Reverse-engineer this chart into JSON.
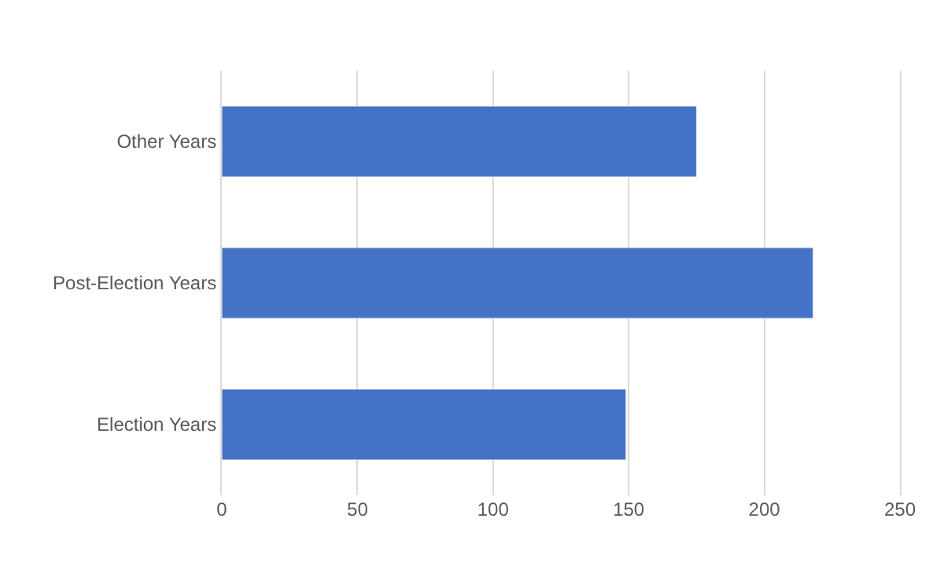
{
  "chart_data": {
    "type": "bar",
    "orientation": "horizontal",
    "categories": [
      "Other Years",
      "Post-Election Years",
      "Election Years"
    ],
    "values": [
      175,
      218,
      149
    ],
    "color": "#4472c4",
    "xlim": [
      0,
      250
    ],
    "xticks": [
      0,
      50,
      100,
      150,
      200,
      250
    ],
    "grid": "x"
  }
}
